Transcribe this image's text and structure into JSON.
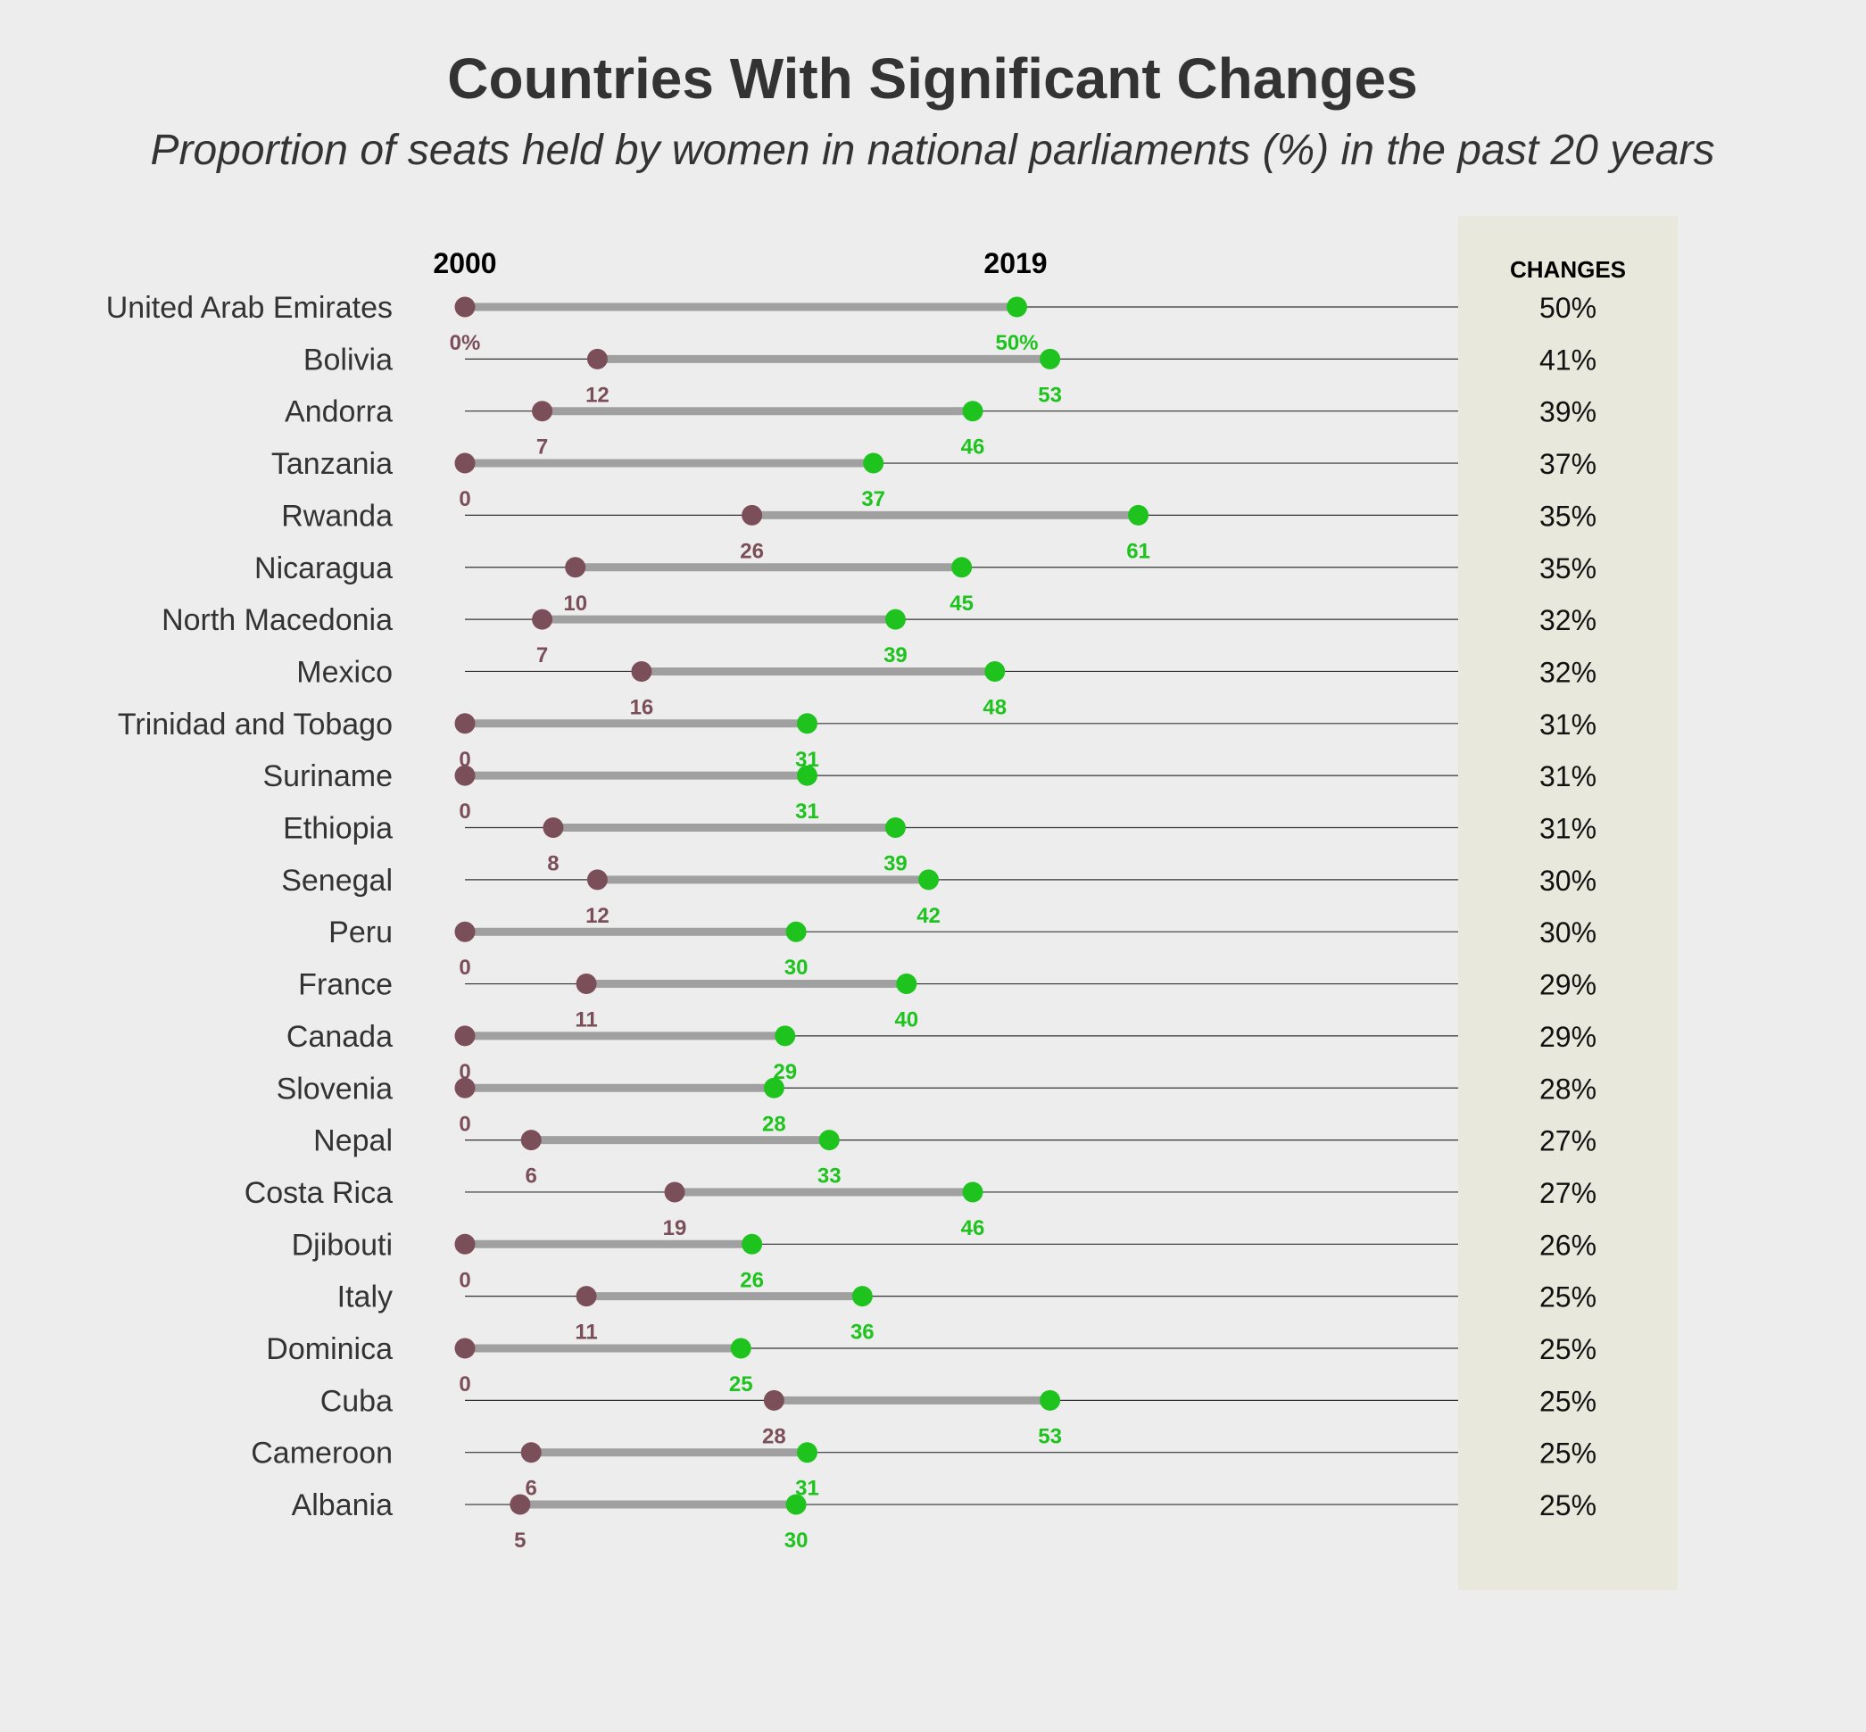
{
  "chart_data": {
    "type": "dumbbell",
    "title": "Countries With Significant Changes",
    "subtitle": "Proportion of seats held by women in national parliaments (%) in the past 20 years",
    "start_label": "2000",
    "end_label": "2019",
    "changes_header": "CHANGES",
    "xlim": [
      0,
      100
    ],
    "colors": {
      "start": "#7b4f5a",
      "end": "#1ec31e",
      "bar": "#a0a0a0",
      "rule": "#333333",
      "panel": "#e8e9dc",
      "background": "#ededed"
    },
    "countries": [
      "United Arab Emirates",
      "Bolivia",
      "Andorra",
      "Tanzania",
      "Rwanda",
      "Nicaragua",
      "North Macedonia",
      "Mexico",
      "Trinidad and Tobago",
      "Suriname",
      "Ethiopia",
      "Senegal",
      "Peru",
      "France",
      "Canada",
      "Slovenia",
      "Nepal",
      "Costa Rica",
      "Djibouti",
      "Italy",
      "Dominica",
      "Cuba",
      "Cameroon",
      "Albania"
    ],
    "series": [
      {
        "name": "2000",
        "values": [
          0,
          12,
          7,
          0,
          26,
          10,
          7,
          16,
          0,
          0,
          8,
          12,
          0,
          11,
          0,
          0,
          6,
          19,
          0,
          11,
          0,
          28,
          6,
          5
        ]
      },
      {
        "name": "2019",
        "values": [
          50,
          53,
          46,
          37,
          61,
          45,
          39,
          48,
          31,
          31,
          39,
          42,
          30,
          40,
          29,
          28,
          33,
          46,
          26,
          36,
          25,
          53,
          31,
          30
        ]
      }
    ],
    "start_labels": [
      "0%",
      "12",
      "7",
      "0",
      "26",
      "10",
      "7",
      "16",
      "0",
      "0",
      "8",
      "12",
      "0",
      "11",
      "0",
      "0",
      "6",
      "19",
      "0",
      "11",
      "0",
      "28",
      "6",
      "5"
    ],
    "end_labels": [
      "50%",
      "53",
      "46",
      "37",
      "61",
      "45",
      "39",
      "48",
      "31",
      "31",
      "39",
      "42",
      "30",
      "40",
      "29",
      "28",
      "33",
      "46",
      "26",
      "36",
      "25",
      "53",
      "31",
      "30"
    ],
    "changes": [
      "50%",
      "41%",
      "39%",
      "37%",
      "35%",
      "35%",
      "32%",
      "32%",
      "31%",
      "31%",
      "31%",
      "30%",
      "30%",
      "29%",
      "29%",
      "28%",
      "27%",
      "27%",
      "26%",
      "25%",
      "25%",
      "25%",
      "25%",
      "25%"
    ]
  }
}
